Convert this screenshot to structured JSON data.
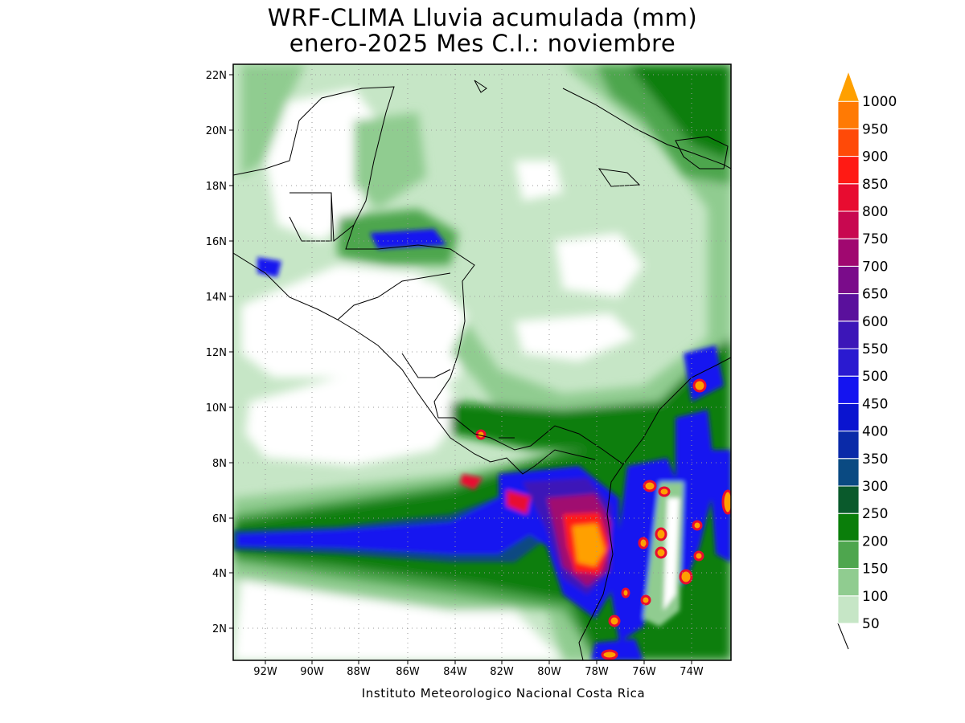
{
  "title_line1": "WRF-CLIMA Lluvia acumulada (mm)",
  "title_line2": "enero-2025 Mes C.I.: noviembre",
  "credit": "Instituto Meteorologico Nacional Costa Rica",
  "lon_labels": [
    "92W",
    "90W",
    "88W",
    "86W",
    "84W",
    "82W",
    "80W",
    "78W",
    "76W",
    "74W"
  ],
  "lat_labels": [
    "2N",
    "4N",
    "6N",
    "8N",
    "10N",
    "12N",
    "14N",
    "16N",
    "18N",
    "20N",
    "22N"
  ],
  "colorbar": {
    "levels": [
      "50",
      "100",
      "150",
      "200",
      "250",
      "300",
      "350",
      "400",
      "450",
      "500",
      "550",
      "600",
      "650",
      "700",
      "750",
      "800",
      "850",
      "900",
      "950",
      "1000"
    ],
    "colors": [
      "#c6e6c6",
      "#90cc90",
      "#4ea64e",
      "#0a7e0a",
      "#0a5a2c",
      "#0a4a82",
      "#0a2aa8",
      "#0a14d0",
      "#1414f0",
      "#2a1ad0",
      "#3c16b8",
      "#5a109c",
      "#7a0c8a",
      "#a00870",
      "#c80850",
      "#e80c30",
      "#ff1a14",
      "#ff4a08",
      "#ff7a04",
      "#ffa000"
    ]
  }
}
